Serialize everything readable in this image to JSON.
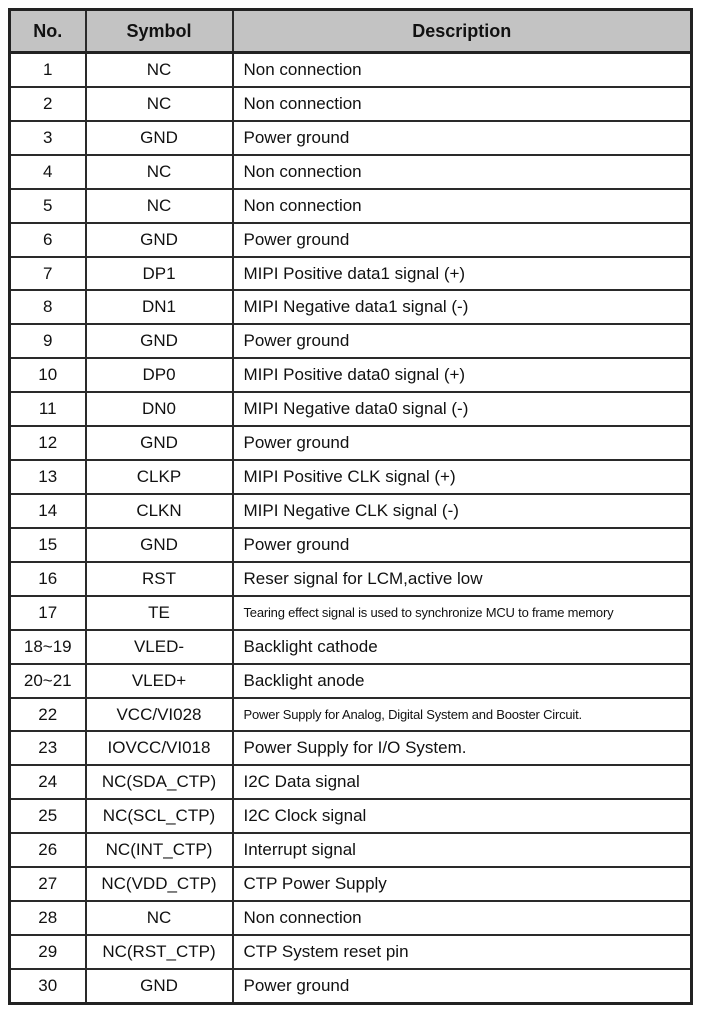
{
  "document": {
    "kind": "pin-assignment-table"
  },
  "table": {
    "columns": [
      "No.",
      "Symbol",
      "Description"
    ],
    "rows": [
      {
        "no": "1",
        "symbol": "NC",
        "description": "Non connection"
      },
      {
        "no": "2",
        "symbol": "NC",
        "description": "Non connection"
      },
      {
        "no": "3",
        "symbol": "GND",
        "description": "Power ground"
      },
      {
        "no": "4",
        "symbol": "NC",
        "description": "Non connection"
      },
      {
        "no": "5",
        "symbol": "NC",
        "description": "Non connection"
      },
      {
        "no": "6",
        "symbol": "GND",
        "description": "Power ground"
      },
      {
        "no": "7",
        "symbol": "DP1",
        "description": "MIPI Positive data1 signal (+)"
      },
      {
        "no": "8",
        "symbol": "DN1",
        "description": "MIPI Negative data1 signal (-)"
      },
      {
        "no": "9",
        "symbol": "GND",
        "description": "Power ground"
      },
      {
        "no": "10",
        "symbol": "DP0",
        "description": "MIPI Positive data0 signal (+)"
      },
      {
        "no": "11",
        "symbol": "DN0",
        "description": "MIPI Negative data0 signal (-)"
      },
      {
        "no": "12",
        "symbol": "GND",
        "description": "Power ground"
      },
      {
        "no": "13",
        "symbol": "CLKP",
        "description": "MIPI Positive CLK signal (+)"
      },
      {
        "no": "14",
        "symbol": "CLKN",
        "description": "MIPI Negative CLK signal (-)"
      },
      {
        "no": "15",
        "symbol": "GND",
        "description": "Power ground"
      },
      {
        "no": "16",
        "symbol": "RST",
        "description": "Reser signal for LCM,active low"
      },
      {
        "no": "17",
        "symbol": "TE",
        "description": "Tearing effect signal is used to synchronize MCU to frame memory"
      },
      {
        "no": "18~19",
        "symbol": "VLED-",
        "description": "Backlight cathode"
      },
      {
        "no": "20~21",
        "symbol": "VLED+",
        "description": "Backlight anode"
      },
      {
        "no": "22",
        "symbol": "VCC/VI028",
        "description": "Power Supply for Analog, Digital System and Booster Circuit."
      },
      {
        "no": "23",
        "symbol": "IOVCC/VI018",
        "description": "Power Supply for I/O System."
      },
      {
        "no": "24",
        "symbol": "NC(SDA_CTP)",
        "description": "I2C Data signal"
      },
      {
        "no": "25",
        "symbol": "NC(SCL_CTP)",
        "description": "I2C Clock signal"
      },
      {
        "no": "26",
        "symbol": "NC(INT_CTP)",
        "description": "Interrupt signal"
      },
      {
        "no": "27",
        "symbol": "NC(VDD_CTP)",
        "description": "CTP Power Supply"
      },
      {
        "no": "28",
        "symbol": "NC",
        "description": "Non connection"
      },
      {
        "no": "29",
        "symbol": "NC(RST_CTP)",
        "description": "CTP System reset pin"
      },
      {
        "no": "30",
        "symbol": "GND",
        "description": "Power ground"
      }
    ],
    "colors": {
      "header_background": "#c3c3c3",
      "border": "#2a2a2a",
      "text": "#111111",
      "page_background": "#ffffff"
    }
  }
}
